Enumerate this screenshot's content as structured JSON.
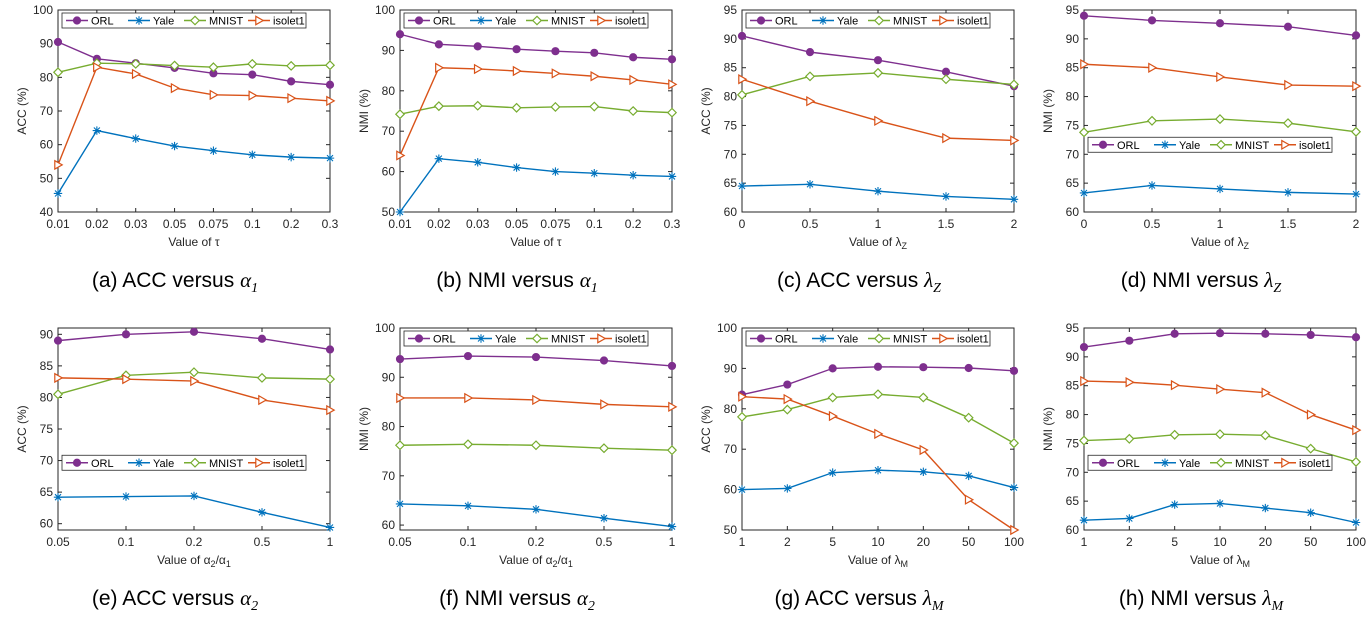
{
  "colors": {
    "ORL": "#7e2f8e",
    "Yale": "#0072bd",
    "MNIST": "#77ac30",
    "isolet1": "#d95319"
  },
  "markers": {
    "ORL": "circle",
    "Yale": "asterisk",
    "MNIST": "diamond",
    "isolet1": "triangle-right"
  },
  "chart_data": [
    {
      "id": "a",
      "type": "line",
      "caption": {
        "prefix": "(a) ACC versus ",
        "sym": "α",
        "sub": "1"
      },
      "xlabel_text": "Value of ",
      "xlabel_sym": "τ",
      "xlabel_sub": "",
      "ylabel": "ACC (%)",
      "x": [
        "0.01",
        "0.02",
        "0.03",
        "0.05",
        "0.075",
        "0.1",
        "0.2",
        "0.3"
      ],
      "ylim": [
        40,
        100
      ],
      "yticks": [
        40,
        50,
        60,
        70,
        80,
        90,
        100
      ],
      "legend": "top-horizontal",
      "series": [
        {
          "name": "ORL",
          "values": [
            90.5,
            85.5,
            84.2,
            82.8,
            81.2,
            80.8,
            78.8,
            77.8
          ]
        },
        {
          "name": "Yale",
          "values": [
            45.5,
            64.2,
            61.8,
            59.6,
            58.2,
            57.0,
            56.3,
            56.0
          ]
        },
        {
          "name": "MNIST",
          "values": [
            81.5,
            84.2,
            84.0,
            83.5,
            83.0,
            84.0,
            83.4,
            83.6
          ]
        },
        {
          "name": "isolet1",
          "values": [
            54.0,
            83.0,
            81.0,
            76.8,
            74.8,
            74.6,
            73.8,
            73.0
          ]
        }
      ]
    },
    {
      "id": "b",
      "type": "line",
      "caption": {
        "prefix": "(b) NMI versus ",
        "sym": "α",
        "sub": "1"
      },
      "xlabel_text": "Value of ",
      "xlabel_sym": "τ",
      "xlabel_sub": "",
      "ylabel": "NMI (%)",
      "x": [
        "0.01",
        "0.02",
        "0.03",
        "0.05",
        "0.075",
        "0.1",
        "0.2",
        "0.3"
      ],
      "ylim": [
        50,
        100
      ],
      "yticks": [
        50,
        60,
        70,
        80,
        90,
        100
      ],
      "legend": "top-horizontal",
      "series": [
        {
          "name": "ORL",
          "values": [
            94.0,
            91.5,
            91.0,
            90.3,
            89.8,
            89.4,
            88.3,
            87.8
          ]
        },
        {
          "name": "Yale",
          "values": [
            50.0,
            63.2,
            62.3,
            61.0,
            60.0,
            59.6,
            59.1,
            58.8
          ]
        },
        {
          "name": "MNIST",
          "values": [
            74.2,
            76.2,
            76.3,
            75.8,
            76.0,
            76.1,
            75.0,
            74.6
          ]
        },
        {
          "name": "isolet1",
          "values": [
            64.0,
            85.7,
            85.4,
            84.9,
            84.3,
            83.6,
            82.7,
            81.6
          ]
        }
      ]
    },
    {
      "id": "c",
      "type": "line",
      "caption": {
        "prefix": "(c) ACC versus ",
        "sym": "λ",
        "sub": "Z"
      },
      "xlabel_text": "Value of ",
      "xlabel_sym": "λ",
      "xlabel_sub": "Z",
      "ylabel": "ACC (%)",
      "x": [
        "0",
        "0.5",
        "1",
        "1.5",
        "2"
      ],
      "ylim": [
        60,
        95
      ],
      "yticks": [
        60,
        65,
        70,
        75,
        80,
        85,
        90,
        95
      ],
      "legend": "top-horizontal",
      "series": [
        {
          "name": "ORL",
          "values": [
            90.5,
            87.7,
            86.3,
            84.3,
            81.8
          ]
        },
        {
          "name": "Yale",
          "values": [
            64.5,
            64.8,
            63.6,
            62.7,
            62.2
          ]
        },
        {
          "name": "MNIST",
          "values": [
            80.3,
            83.5,
            84.1,
            83.0,
            82.1
          ]
        },
        {
          "name": "isolet1",
          "values": [
            83.0,
            79.2,
            75.8,
            72.8,
            72.4
          ]
        }
      ]
    },
    {
      "id": "d",
      "type": "line",
      "caption": {
        "prefix": "(d) NMI versus ",
        "sym": "λ",
        "sub": "Z"
      },
      "xlabel_text": "Value of ",
      "xlabel_sym": "λ",
      "xlabel_sub": "Z",
      "ylabel": "NMI (%)",
      "x": [
        "0",
        "0.5",
        "1",
        "1.5",
        "2"
      ],
      "ylim": [
        60,
        95
      ],
      "yticks": [
        60,
        65,
        70,
        75,
        80,
        85,
        90,
        95
      ],
      "legend": "middle-horizontal",
      "series": [
        {
          "name": "ORL",
          "values": [
            94.0,
            93.2,
            92.7,
            92.1,
            90.6
          ]
        },
        {
          "name": "Yale",
          "values": [
            63.3,
            64.6,
            64.0,
            63.4,
            63.1
          ]
        },
        {
          "name": "MNIST",
          "values": [
            73.8,
            75.8,
            76.1,
            75.4,
            73.9
          ]
        },
        {
          "name": "isolet1",
          "values": [
            85.6,
            85.0,
            83.4,
            82.0,
            81.8
          ]
        }
      ]
    },
    {
      "id": "e",
      "type": "line",
      "caption": {
        "prefix": "(e) ACC versus ",
        "sym": "α",
        "sub": "2"
      },
      "xlabel_text": "Value of ",
      "xlabel_sym": "α",
      "xlabel_sub": "2",
      "xlabel_suffix_sym": "α",
      "xlabel_suffix_sub": "1",
      "ylabel": "ACC (%)",
      "x": [
        "0.05",
        "0.1",
        "0.2",
        "0.5",
        "1"
      ],
      "ylim": [
        59,
        91
      ],
      "yticks": [
        60,
        65,
        70,
        75,
        80,
        85,
        90
      ],
      "legend": "middle-horizontal",
      "series": [
        {
          "name": "ORL",
          "values": [
            89.0,
            90.0,
            90.4,
            89.3,
            87.6
          ]
        },
        {
          "name": "Yale",
          "values": [
            64.2,
            64.3,
            64.4,
            61.8,
            59.4
          ]
        },
        {
          "name": "MNIST",
          "values": [
            80.5,
            83.5,
            84.0,
            83.1,
            82.9
          ]
        },
        {
          "name": "isolet1",
          "values": [
            83.1,
            82.9,
            82.6,
            79.6,
            78.0
          ]
        }
      ]
    },
    {
      "id": "f",
      "type": "line",
      "caption": {
        "prefix": "(f) NMI versus ",
        "sym": "α",
        "sub": "2"
      },
      "xlabel_text": "Value of ",
      "xlabel_sym": "α",
      "xlabel_sub": "2",
      "xlabel_suffix_sym": "α",
      "xlabel_suffix_sub": "1",
      "ylabel": "NMI (%)",
      "x": [
        "0.05",
        "0.1",
        "0.2",
        "0.5",
        "1"
      ],
      "ylim": [
        59,
        100
      ],
      "yticks": [
        60,
        70,
        80,
        90,
        100
      ],
      "legend": "top-horizontal",
      "series": [
        {
          "name": "ORL",
          "values": [
            93.7,
            94.3,
            94.1,
            93.4,
            92.3
          ]
        },
        {
          "name": "Yale",
          "values": [
            64.3,
            63.9,
            63.2,
            61.4,
            59.7
          ]
        },
        {
          "name": "MNIST",
          "values": [
            76.2,
            76.4,
            76.2,
            75.6,
            75.2
          ]
        },
        {
          "name": "isolet1",
          "values": [
            85.8,
            85.8,
            85.4,
            84.5,
            84.0
          ]
        }
      ]
    },
    {
      "id": "g",
      "type": "line",
      "caption": {
        "prefix": "(g) ACC versus ",
        "sym": "λ",
        "sub": "M"
      },
      "xlabel_text": "Value of ",
      "xlabel_sym": "λ",
      "xlabel_sub": "M",
      "ylabel": "ACC (%)",
      "x": [
        "1",
        "2",
        "5",
        "10",
        "20",
        "50",
        "100"
      ],
      "ylim": [
        50,
        100
      ],
      "yticks": [
        50,
        60,
        70,
        80,
        90,
        100
      ],
      "legend": "top-horizontal",
      "series": [
        {
          "name": "ORL",
          "values": [
            83.5,
            86.0,
            90.0,
            90.4,
            90.3,
            90.1,
            89.4
          ]
        },
        {
          "name": "Yale",
          "values": [
            60.0,
            60.3,
            64.2,
            64.8,
            64.4,
            63.4,
            60.5
          ]
        },
        {
          "name": "MNIST",
          "values": [
            78.0,
            79.8,
            82.8,
            83.6,
            82.8,
            77.8,
            71.5
          ]
        },
        {
          "name": "isolet1",
          "values": [
            83.0,
            82.4,
            78.2,
            73.8,
            69.8,
            57.5,
            50.0
          ]
        }
      ]
    },
    {
      "id": "h",
      "type": "line",
      "caption": {
        "prefix": "(h) NMI versus ",
        "sym": "λ",
        "sub": "M"
      },
      "xlabel_text": "Value of ",
      "xlabel_sym": "λ",
      "xlabel_sub": "M",
      "ylabel": "NMI (%)",
      "x": [
        "1",
        "2",
        "5",
        "10",
        "20",
        "50",
        "100"
      ],
      "ylim": [
        60,
        95
      ],
      "yticks": [
        60,
        65,
        70,
        75,
        80,
        85,
        90,
        95
      ],
      "legend": "middle-horizontal",
      "series": [
        {
          "name": "ORL",
          "values": [
            91.7,
            92.8,
            94.0,
            94.1,
            94.0,
            93.8,
            93.4
          ]
        },
        {
          "name": "Yale",
          "values": [
            61.7,
            62.0,
            64.4,
            64.6,
            63.8,
            63.0,
            61.3
          ]
        },
        {
          "name": "MNIST",
          "values": [
            75.5,
            75.8,
            76.5,
            76.6,
            76.4,
            74.1,
            71.8
          ]
        },
        {
          "name": "isolet1",
          "values": [
            85.8,
            85.6,
            85.1,
            84.4,
            83.8,
            80.0,
            77.3
          ]
        }
      ]
    }
  ]
}
